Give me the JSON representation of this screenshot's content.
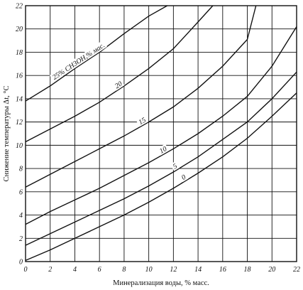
{
  "chart_data": {
    "type": "line",
    "xlabel": "Минерализация воды, % масс.",
    "ylabel": "Снижение температуры Δt, °C",
    "xlim": [
      0,
      22
    ],
    "ylim": [
      0,
      22
    ],
    "x_ticks": [
      "0",
      "2",
      "4",
      "6",
      "8",
      "10",
      "12",
      "14",
      "16",
      "18",
      "20",
      "22"
    ],
    "y_ticks": [
      "0",
      "2",
      "4",
      "6",
      "8",
      "10",
      "12",
      "14",
      "16",
      "18",
      "20",
      "22"
    ],
    "grid": true,
    "series": [
      {
        "name": "25% CH3OH,% мас.",
        "x": [
          0,
          2,
          4,
          6,
          8,
          10,
          11.5
        ],
        "y": [
          13.8,
          15.1,
          16.6,
          18.0,
          19.6,
          21.1,
          22.0
        ]
      },
      {
        "name": "20",
        "x": [
          0,
          2,
          4,
          6,
          8,
          10,
          12,
          14,
          15.2
        ],
        "y": [
          10.3,
          11.4,
          12.5,
          13.7,
          15.1,
          16.6,
          18.3,
          20.6,
          22.0
        ]
      },
      {
        "name": "15",
        "x": [
          0,
          2,
          4,
          6,
          8,
          10,
          12,
          14,
          16,
          18,
          18.7
        ],
        "y": [
          6.4,
          7.5,
          8.6,
          9.7,
          10.8,
          12.0,
          13.3,
          14.9,
          16.8,
          19.1,
          22.0
        ]
      },
      {
        "name": "10",
        "x": [
          0,
          2,
          4,
          6,
          8,
          10,
          12,
          14,
          16,
          18,
          20,
          22
        ],
        "y": [
          3.2,
          4.3,
          5.3,
          6.3,
          7.4,
          8.5,
          9.7,
          11.0,
          12.5,
          14.2,
          16.8,
          20.2
        ]
      },
      {
        "name": "5",
        "x": [
          0,
          2,
          4,
          6,
          8,
          10,
          12,
          14,
          16,
          18,
          20,
          22
        ],
        "y": [
          1.4,
          2.4,
          3.4,
          4.4,
          5.4,
          6.5,
          7.7,
          9.0,
          10.5,
          12.0,
          14.0,
          16.3
        ]
      },
      {
        "name": "0",
        "x": [
          0,
          2,
          4,
          6,
          8,
          10,
          12,
          14,
          16,
          18,
          20,
          22
        ],
        "y": [
          0.1,
          1.0,
          2.0,
          3.0,
          4.0,
          5.1,
          6.3,
          7.6,
          9.0,
          10.6,
          12.5,
          14.5
        ]
      }
    ]
  }
}
